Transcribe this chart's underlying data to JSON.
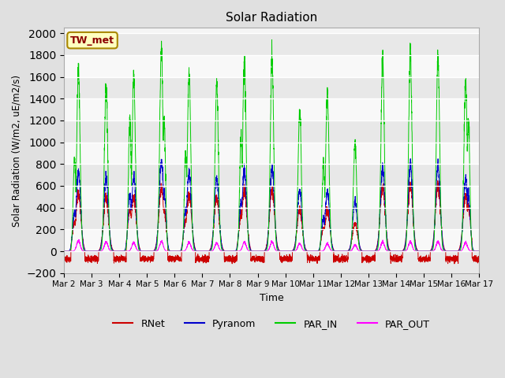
{
  "title": "Solar Radiation",
  "ylabel": "Solar Radiation (W/m2, uE/m2/s)",
  "xlabel": "Time",
  "station_label": "TW_met",
  "ylim": [
    -200,
    2050
  ],
  "yticks": [
    -200,
    0,
    200,
    400,
    600,
    800,
    1000,
    1200,
    1400,
    1600,
    1800,
    2000
  ],
  "colors": {
    "RNet": "#cc0000",
    "Pyranom": "#0000cc",
    "PAR_IN": "#00cc00",
    "PAR_OUT": "#ff00ff"
  },
  "bg_color": "#e0e0e0",
  "plot_bg": "#f5f5f5",
  "num_days": 15,
  "start_day": 2,
  "figsize": [
    6.4,
    4.8
  ],
  "dpi": 100
}
